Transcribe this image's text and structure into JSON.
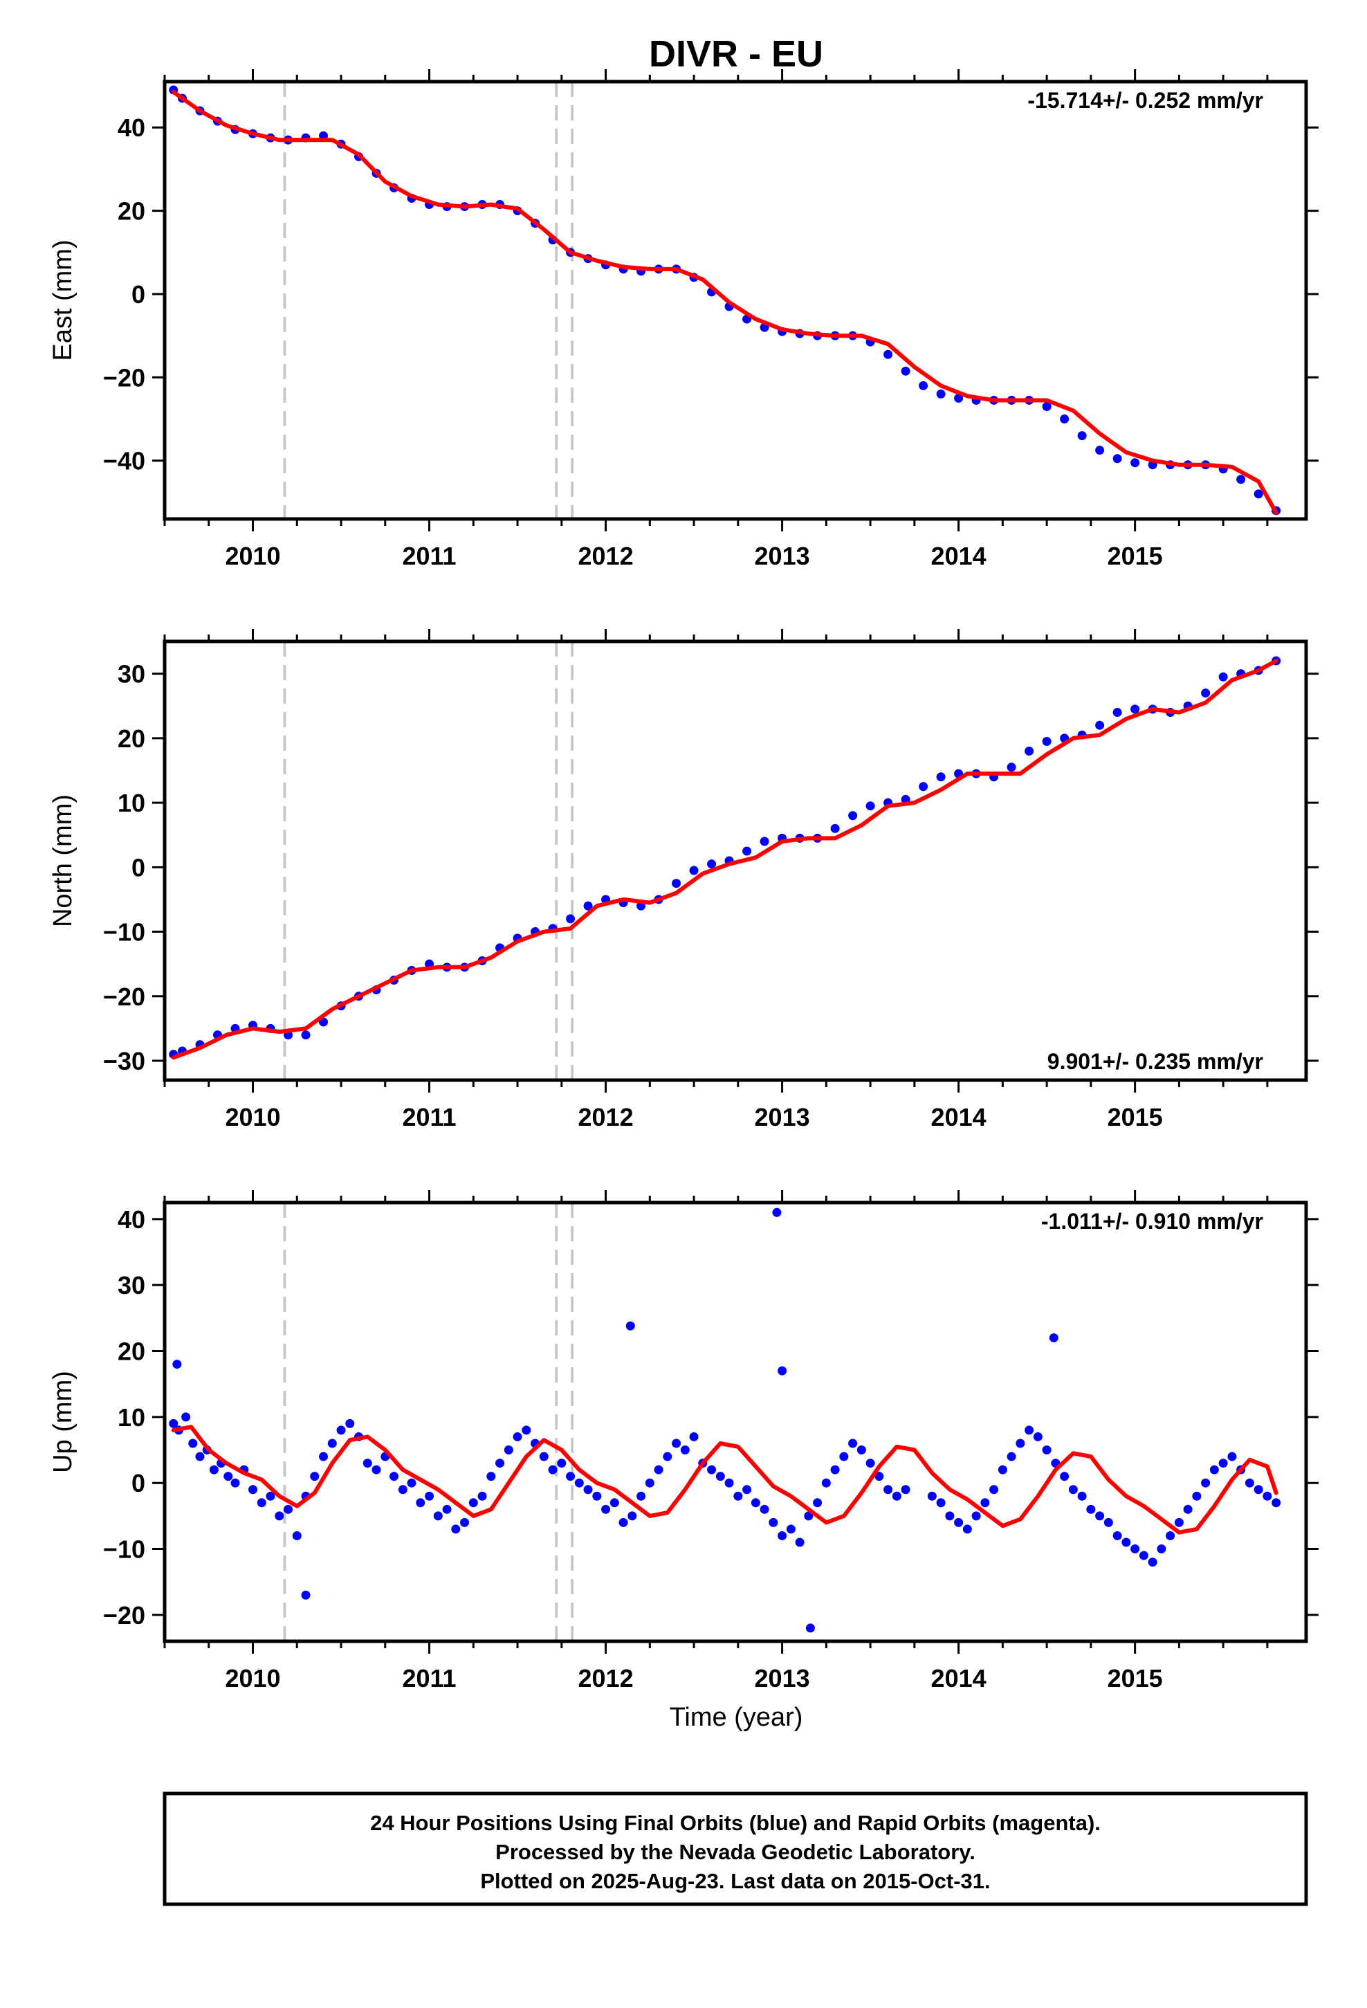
{
  "title": "DIVR - EU",
  "xlabel": "Time (year)",
  "footer": {
    "line1": "24 Hour Positions Using Final Orbits (blue) and Rapid Orbits (magenta).",
    "line2": "Processed by the Nevada Geodetic Laboratory.",
    "line3": "Plotted on 2025-Aug-23. Last data on 2015-Oct-31."
  },
  "colors": {
    "points": "#0000ff",
    "fit": "#ff0000",
    "breaks": "#c8c8c8",
    "frame": "#000000"
  },
  "chart_data": [
    {
      "type": "scatter",
      "component": "east",
      "ylabel": "East (mm)",
      "rate_text": "-15.714+/- 0.252 mm/yr",
      "rate_position": "top-right",
      "xlim": [
        2009.5,
        2015.97
      ],
      "ylim": [
        -54,
        51
      ],
      "xticks": [
        2010,
        2011,
        2012,
        2013,
        2014,
        2015
      ],
      "yticks": [
        -40,
        -20,
        0,
        20,
        40
      ],
      "grid": false,
      "break_lines_x": [
        2010.18,
        2011.72,
        2011.81
      ],
      "series": [
        {
          "role": "observations",
          "x": [
            2009.55,
            2009.6,
            2009.7,
            2009.8,
            2009.9,
            2010.0,
            2010.1,
            2010.2,
            2010.3,
            2010.4,
            2010.5,
            2010.6,
            2010.7,
            2010.8,
            2010.9,
            2011.0,
            2011.1,
            2011.2,
            2011.3,
            2011.4,
            2011.5,
            2011.6,
            2011.7,
            2011.8,
            2011.9,
            2012.0,
            2012.1,
            2012.2,
            2012.3,
            2012.4,
            2012.5,
            2012.6,
            2012.7,
            2012.8,
            2012.9,
            2013.0,
            2013.1,
            2013.2,
            2013.3,
            2013.4,
            2013.5,
            2013.6,
            2013.7,
            2013.8,
            2013.9,
            2014.0,
            2014.1,
            2014.2,
            2014.3,
            2014.4,
            2014.5,
            2014.6,
            2014.7,
            2014.8,
            2014.9,
            2015.0,
            2015.1,
            2015.2,
            2015.3,
            2015.4,
            2015.5,
            2015.6,
            2015.7,
            2015.8
          ],
          "y": [
            49,
            47,
            44,
            41.5,
            39.5,
            38.5,
            37.5,
            37,
            37.5,
            38,
            36,
            33,
            29,
            25.5,
            23,
            21.5,
            21,
            21,
            21.5,
            21.5,
            20,
            17,
            13,
            10,
            8.5,
            7,
            6,
            5.5,
            6,
            6,
            4,
            0.5,
            -3,
            -6,
            -8,
            -9,
            -9.5,
            -10,
            -10,
            -10,
            -11.5,
            -14.5,
            -18.5,
            -22,
            -24,
            -25,
            -25.5,
            -25.5,
            -25.5,
            -25.5,
            -27,
            -30,
            -34,
            -37.5,
            -39.5,
            -40.5,
            -41,
            -41,
            -41,
            -41,
            -42,
            -44.5,
            -48,
            -52
          ]
        },
        {
          "role": "fit",
          "x": [
            2009.55,
            2009.7,
            2009.85,
            2010.0,
            2010.15,
            2010.3,
            2010.45,
            2010.6,
            2010.75,
            2010.9,
            2011.05,
            2011.2,
            2011.35,
            2011.5,
            2011.65,
            2011.8,
            2011.95,
            2012.1,
            2012.25,
            2012.4,
            2012.55,
            2012.7,
            2012.85,
            2013.0,
            2013.15,
            2013.3,
            2013.45,
            2013.6,
            2013.75,
            2013.9,
            2014.05,
            2014.2,
            2014.35,
            2014.5,
            2014.65,
            2014.8,
            2014.95,
            2015.1,
            2015.25,
            2015.4,
            2015.55,
            2015.7,
            2015.8
          ],
          "y": [
            48.5,
            44,
            40.5,
            38.5,
            37,
            37,
            37,
            33.5,
            27,
            23.5,
            21.5,
            21,
            21.5,
            20.5,
            15.5,
            10,
            8,
            6.5,
            6,
            6,
            3.5,
            -2,
            -6,
            -8.5,
            -9.5,
            -10,
            -10,
            -12,
            -17.5,
            -22,
            -24.5,
            -25.5,
            -25.5,
            -25.5,
            -28,
            -33.5,
            -38,
            -40,
            -41,
            -41,
            -41.5,
            -45,
            -52.5
          ]
        }
      ]
    },
    {
      "type": "scatter",
      "component": "north",
      "ylabel": "North (mm)",
      "rate_text": "9.901+/- 0.235 mm/yr",
      "rate_position": "bottom-right",
      "xlim": [
        2009.5,
        2015.97
      ],
      "ylim": [
        -33,
        35
      ],
      "xticks": [
        2010,
        2011,
        2012,
        2013,
        2014,
        2015
      ],
      "yticks": [
        -30,
        -20,
        -10,
        0,
        10,
        20,
        30
      ],
      "grid": false,
      "break_lines_x": [
        2010.18,
        2011.72,
        2011.81
      ],
      "series": [
        {
          "role": "observations",
          "x": [
            2009.55,
            2009.6,
            2009.7,
            2009.8,
            2009.9,
            2010.0,
            2010.1,
            2010.2,
            2010.3,
            2010.4,
            2010.5,
            2010.6,
            2010.7,
            2010.8,
            2010.9,
            2011.0,
            2011.1,
            2011.2,
            2011.3,
            2011.4,
            2011.5,
            2011.6,
            2011.7,
            2011.8,
            2011.9,
            2012.0,
            2012.1,
            2012.2,
            2012.3,
            2012.4,
            2012.5,
            2012.6,
            2012.7,
            2012.8,
            2012.9,
            2013.0,
            2013.1,
            2013.2,
            2013.3,
            2013.4,
            2013.5,
            2013.6,
            2013.7,
            2013.8,
            2013.9,
            2014.0,
            2014.1,
            2014.2,
            2014.3,
            2014.4,
            2014.5,
            2014.6,
            2014.7,
            2014.8,
            2014.9,
            2015.0,
            2015.1,
            2015.2,
            2015.3,
            2015.4,
            2015.5,
            2015.6,
            2015.7,
            2015.8
          ],
          "y": [
            -29,
            -28.5,
            -27.5,
            -26,
            -25,
            -24.5,
            -25,
            -26,
            -26,
            -24,
            -21.5,
            -20,
            -19,
            -17.5,
            -16,
            -15,
            -15.5,
            -15.5,
            -14.5,
            -12.5,
            -11,
            -10,
            -9.5,
            -8,
            -6,
            -5,
            -5.5,
            -6,
            -5,
            -2.5,
            -0.5,
            0.5,
            1,
            2.5,
            4,
            4.5,
            4.5,
            4.5,
            6,
            8,
            9.5,
            10,
            10.5,
            12.5,
            14,
            14.5,
            14.5,
            14,
            15.5,
            18,
            19.5,
            20,
            20.5,
            22,
            24,
            24.5,
            24.5,
            24,
            25,
            27,
            29.5,
            30,
            30.5,
            32
          ]
        },
        {
          "role": "fit",
          "x": [
            2009.55,
            2009.7,
            2009.85,
            2010.0,
            2010.15,
            2010.3,
            2010.45,
            2010.6,
            2010.75,
            2010.9,
            2011.05,
            2011.2,
            2011.35,
            2011.5,
            2011.65,
            2011.8,
            2011.95,
            2012.1,
            2012.25,
            2012.4,
            2012.55,
            2012.7,
            2012.85,
            2013.0,
            2013.15,
            2013.3,
            2013.45,
            2013.6,
            2013.75,
            2013.9,
            2014.05,
            2014.2,
            2014.35,
            2014.5,
            2014.65,
            2014.8,
            2014.95,
            2015.1,
            2015.25,
            2015.4,
            2015.55,
            2015.7,
            2015.8
          ],
          "y": [
            -29.5,
            -28,
            -26,
            -25,
            -25.5,
            -25,
            -22,
            -20,
            -18,
            -16,
            -15.5,
            -15.5,
            -14,
            -11.5,
            -10,
            -9.5,
            -6,
            -5,
            -5.5,
            -4,
            -1,
            0.5,
            1.5,
            4,
            4.5,
            4.5,
            6.5,
            9.5,
            10,
            12,
            14.5,
            14.5,
            14.5,
            17.5,
            20,
            20.5,
            23,
            24.5,
            24,
            25.5,
            29,
            30.5,
            32
          ]
        }
      ]
    },
    {
      "type": "scatter",
      "component": "up",
      "ylabel": "Up (mm)",
      "rate_text": "-1.011+/- 0.910 mm/yr",
      "rate_position": "top-right",
      "xlim": [
        2009.5,
        2015.97
      ],
      "ylim": [
        -24,
        42.5
      ],
      "xticks": [
        2010,
        2011,
        2012,
        2013,
        2014,
        2015
      ],
      "yticks": [
        -20,
        -10,
        0,
        10,
        20,
        30,
        40
      ],
      "grid": false,
      "break_lines_x": [
        2010.18,
        2011.72,
        2011.81
      ],
      "series": [
        {
          "role": "observations",
          "x": [
            2009.55,
            2009.58,
            2009.62,
            2009.66,
            2009.7,
            2009.74,
            2009.78,
            2009.82,
            2009.86,
            2009.9,
            2009.95,
            2010.0,
            2010.05,
            2010.1,
            2010.15,
            2010.2,
            2010.25,
            2010.3,
            2010.35,
            2010.4,
            2010.45,
            2010.5,
            2010.55,
            2010.6,
            2010.65,
            2010.7,
            2010.75,
            2010.8,
            2010.85,
            2010.9,
            2010.95,
            2011.0,
            2011.05,
            2011.1,
            2011.15,
            2011.2,
            2011.25,
            2011.3,
            2011.35,
            2011.4,
            2011.45,
            2011.5,
            2011.55,
            2011.6,
            2011.65,
            2011.7,
            2011.75,
            2011.8,
            2011.85,
            2011.9,
            2011.95,
            2012.0,
            2012.05,
            2012.1,
            2012.15,
            2012.2,
            2012.25,
            2012.3,
            2012.35,
            2012.4,
            2012.45,
            2012.5,
            2012.55,
            2012.6,
            2012.65,
            2012.7,
            2012.75,
            2012.8,
            2012.85,
            2012.9,
            2012.95,
            2013.0,
            2013.05,
            2013.1,
            2013.15,
            2013.2,
            2013.25,
            2013.3,
            2013.35,
            2013.4,
            2013.45,
            2013.5,
            2013.55,
            2013.6,
            2013.65,
            2013.7,
            2013.85,
            2013.9,
            2013.95,
            2014.0,
            2014.05,
            2014.1,
            2014.15,
            2014.2,
            2014.25,
            2014.3,
            2014.35,
            2014.4,
            2014.45,
            2014.5,
            2014.55,
            2014.6,
            2014.65,
            2014.7,
            2014.75,
            2014.8,
            2014.85,
            2014.9,
            2014.95,
            2015.0,
            2015.05,
            2015.1,
            2015.15,
            2015.2,
            2015.25,
            2015.3,
            2015.35,
            2015.4,
            2015.45,
            2015.5,
            2015.55,
            2015.6,
            2015.65,
            2015.7,
            2015.75,
            2015.8,
            2012.14,
            2012.97,
            2013.16,
            2014.54,
            2009.57,
            2013.0,
            2010.3
          ],
          "y": [
            9,
            8,
            10,
            6,
            4,
            5,
            2,
            3,
            1,
            0,
            2,
            -1,
            -3,
            -2,
            -5,
            -4,
            -8,
            -2,
            1,
            4,
            6,
            8,
            9,
            7,
            3,
            2,
            4,
            1,
            -1,
            0,
            -3,
            -2,
            -5,
            -4,
            -7,
            -6,
            -3,
            -2,
            1,
            3,
            5,
            7,
            8,
            6,
            4,
            2,
            3,
            1,
            0,
            -1,
            -2,
            -4,
            -3,
            -6,
            -5,
            -2,
            0,
            2,
            4,
            6,
            5,
            7,
            3,
            2,
            1,
            0,
            -2,
            -1,
            -3,
            -4,
            -6,
            -8,
            -7,
            -9,
            -5,
            -3,
            0,
            2,
            4,
            6,
            5,
            3,
            1,
            -1,
            -2,
            -1,
            -2,
            -3,
            -5,
            -6,
            -7,
            -5,
            -3,
            -1,
            2,
            4,
            6,
            8,
            7,
            5,
            3,
            1,
            -1,
            -2,
            -4,
            -5,
            -6,
            -8,
            -9,
            -10,
            -11,
            -12,
            -10,
            -8,
            -6,
            -4,
            -2,
            0,
            2,
            3,
            4,
            2,
            0,
            -1,
            -2,
            -3,
            23.8,
            41,
            -22,
            22,
            18,
            17,
            -17
          ]
        },
        {
          "role": "fit",
          "x": [
            2009.55,
            2009.65,
            2009.75,
            2009.85,
            2009.95,
            2010.05,
            2010.15,
            2010.25,
            2010.35,
            2010.45,
            2010.55,
            2010.65,
            2010.75,
            2010.85,
            2010.95,
            2011.05,
            2011.15,
            2011.25,
            2011.35,
            2011.45,
            2011.55,
            2011.65,
            2011.75,
            2011.85,
            2011.95,
            2012.05,
            2012.15,
            2012.25,
            2012.35,
            2012.45,
            2012.55,
            2012.65,
            2012.75,
            2012.85,
            2012.95,
            2013.05,
            2013.15,
            2013.25,
            2013.35,
            2013.45,
            2013.55,
            2013.65,
            2013.75,
            2013.85,
            2013.95,
            2014.05,
            2014.15,
            2014.25,
            2014.35,
            2014.45,
            2014.55,
            2014.65,
            2014.75,
            2014.85,
            2014.95,
            2015.05,
            2015.15,
            2015.25,
            2015.35,
            2015.45,
            2015.55,
            2015.65,
            2015.75,
            2015.8
          ],
          "y": [
            8,
            8.5,
            5,
            3,
            1.5,
            0.5,
            -2,
            -3.5,
            -1.5,
            3,
            6.5,
            7,
            5,
            2,
            0.5,
            -1,
            -3,
            -5,
            -4,
            0,
            4,
            6.5,
            5,
            2,
            0,
            -1,
            -3,
            -5,
            -4.5,
            -1,
            3,
            6,
            5.5,
            2.5,
            -0.5,
            -2,
            -4,
            -6,
            -5,
            -1.5,
            2.5,
            5.5,
            5,
            1.5,
            -1,
            -2.5,
            -4.5,
            -6.5,
            -5.5,
            -2,
            2,
            4.5,
            4,
            0.5,
            -2,
            -3.5,
            -5.5,
            -7.5,
            -7,
            -3.5,
            0.5,
            3.5,
            2.5,
            -1.5
          ]
        }
      ]
    }
  ]
}
